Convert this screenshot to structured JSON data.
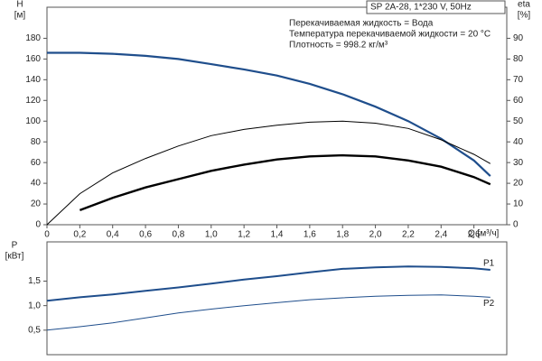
{
  "chart_data": [
    {
      "type": "line",
      "annotations": [
        "SP 2A-28, 1*230 V, 50Hz",
        "Перекачиваемая жидкость = Вода",
        "Температура перекачиваемой жидкости = 20 °C",
        "Плотность = 998.2 кг/м³"
      ],
      "x_label": "Q [м³/ч]",
      "y_label": [
        "H",
        "[м]"
      ],
      "y2_label": [
        "eta",
        "[%]"
      ],
      "x": [
        0,
        0.2,
        0.4,
        0.6,
        0.8,
        1.0,
        1.2,
        1.4,
        1.6,
        1.8,
        2.0,
        2.2,
        2.4,
        2.6,
        2.7
      ],
      "xlim": [
        0,
        2.8
      ],
      "xticks": [
        0,
        {
          "value": 0.2,
          "label": "0,2"
        },
        {
          "value": 0.4,
          "label": "0,4"
        },
        {
          "value": 0.6,
          "label": "0,6"
        },
        {
          "value": 0.8,
          "label": "0,8"
        },
        {
          "value": 1.0,
          "label": "1,0"
        },
        {
          "value": 1.2,
          "label": "1,2"
        },
        {
          "value": 1.4,
          "label": "1,4"
        },
        {
          "value": 1.6,
          "label": "1,6"
        },
        {
          "value": 1.8,
          "label": "1,8"
        },
        {
          "value": 2.0,
          "label": "2,0"
        },
        {
          "value": 2.2,
          "label": "2,2"
        },
        {
          "value": 2.4,
          "label": "2,4"
        },
        {
          "value": 2.6,
          "label": "2,6"
        }
      ],
      "ylim": [
        0,
        210
      ],
      "yticks": [
        0,
        20,
        40,
        60,
        80,
        100,
        120,
        140,
        160,
        180
      ],
      "y2lim": [
        0,
        105
      ],
      "y2ticks": [
        0,
        10,
        20,
        30,
        40,
        50,
        60,
        70,
        80,
        90
      ],
      "series": [
        {
          "color": "#1f4e8c",
          "values": [
            166,
            166,
            165,
            163,
            160,
            155,
            150,
            144,
            136,
            126,
            114,
            100,
            83,
            62,
            47
          ]
        },
        {
          "color": "#000000",
          "axis": "y2",
          "values": [
            0,
            15,
            25,
            32,
            38,
            43,
            46,
            48,
            49.5,
            50,
            49,
            46.5,
            41,
            34,
            29.5
          ]
        },
        {
          "color": "#000000",
          "axis": "y2",
          "values": [
            null,
            7,
            13,
            18,
            22,
            26,
            29,
            31.5,
            33,
            33.5,
            33,
            31,
            28,
            23,
            19.5
          ]
        }
      ]
    },
    {
      "type": "line",
      "y_label": [
        "P",
        "[кВт]"
      ],
      "x": [
        0,
        0.2,
        0.4,
        0.6,
        0.8,
        1.0,
        1.2,
        1.4,
        1.6,
        1.8,
        2.0,
        2.2,
        2.4,
        2.6,
        2.7
      ],
      "xlim": [
        0,
        2.8
      ],
      "ylim": [
        0,
        2.3
      ],
      "yticks": [
        {
          "value": 0.5,
          "label": "0,5"
        },
        {
          "value": 1.0,
          "label": "1,0"
        },
        {
          "value": 1.5,
          "label": "1,5"
        }
      ],
      "series": [
        {
          "name": "P1",
          "color": "#1f4e8c",
          "values": [
            1.1,
            1.17,
            1.23,
            1.3,
            1.37,
            1.45,
            1.53,
            1.6,
            1.68,
            1.75,
            1.78,
            1.8,
            1.79,
            1.76,
            1.73
          ]
        },
        {
          "name": "P2",
          "color": "#1f4e8c",
          "values": [
            0.5,
            0.57,
            0.65,
            0.75,
            0.85,
            0.93,
            1.0,
            1.06,
            1.12,
            1.16,
            1.19,
            1.21,
            1.22,
            1.19,
            1.17
          ]
        }
      ]
    }
  ]
}
